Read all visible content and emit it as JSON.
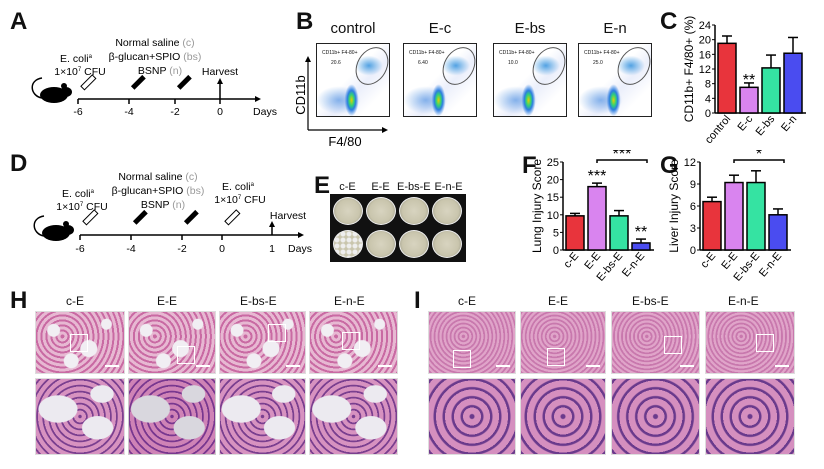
{
  "panels": {
    "A": "A",
    "B": "B",
    "C": "C",
    "D": "D",
    "E": "E",
    "F": "F",
    "G": "G",
    "H": "H",
    "I": "I"
  },
  "timeline_a": {
    "ecoli_line1": "E. coli",
    "ecoli_sup": "a",
    "ecoli_line2": "1×10",
    "ecoli_exp": "7",
    "ecoli_unit": " CFU",
    "treat1": "Normal saline ",
    "treat1_tag": "(c)",
    "treat2": "β-glucan+SPIO ",
    "treat2_tag": "(bs)",
    "treat3": "BSNP ",
    "treat3_tag": "(n)",
    "harvest": "Harvest",
    "ticks": [
      "-6",
      "-4",
      "-2",
      "0"
    ],
    "axis_label": "Days"
  },
  "timeline_d": {
    "ecoli_line1": "E. coli",
    "ecoli_sup": "a",
    "ecoli_line2": "1×10",
    "ecoli_exp": "7",
    "ecoli_unit": " CFU",
    "treat1": "Normal saline ",
    "treat1_tag": "(c)",
    "treat2": "β-glucan+SPIO ",
    "treat2_tag": "(bs)",
    "treat3": "BSNP ",
    "treat3_tag": "(n)",
    "harvest": "Harvest",
    "ticks": [
      "-6",
      "-4",
      "-2",
      "0",
      "1"
    ],
    "axis_label": "Days"
  },
  "flow": {
    "y_label": "CD11b",
    "x_label": "F4/80",
    "gate_label": "CD11b+ F4-80+",
    "plots": [
      {
        "title": "control",
        "value": "20.6"
      },
      {
        "title": "E-c",
        "value": "6.40"
      },
      {
        "title": "E-bs",
        "value": "10.0"
      },
      {
        "title": "E-n",
        "value": "25.0"
      }
    ]
  },
  "plates": {
    "labels": [
      "c-E",
      "E-E",
      "E-bs-E",
      "E-n-E"
    ]
  },
  "histology": {
    "H": [
      "c-E",
      "E-E",
      "E-bs-E",
      "E-n-E"
    ],
    "I": [
      "c-E",
      "E-E",
      "E-bs-E",
      "E-n-E"
    ]
  },
  "colors": [
    "#e8343c",
    "#d984ef",
    "#35e3a2",
    "#4a4cf0"
  ],
  "chart_data": [
    {
      "id": "C",
      "type": "bar",
      "ylabel": "CD11b+ F4/80+ (%)",
      "categories": [
        "control",
        "E-c",
        "E-bs",
        "E-n"
      ],
      "values": [
        19,
        7,
        12.3,
        16.3
      ],
      "errors": [
        2,
        1.2,
        3.5,
        4.3
      ],
      "ylim": [
        0,
        24
      ],
      "yticks": [
        "0",
        "4",
        "8",
        "12",
        "16",
        "20",
        "24"
      ],
      "annotations": [
        {
          "category": "E-c",
          "text": "**"
        }
      ]
    },
    {
      "id": "F",
      "type": "bar",
      "ylabel": "Lung Injury Score",
      "categories": [
        "c-E",
        "E-E",
        "E-bs-E",
        "E-n-E"
      ],
      "values": [
        9.7,
        18,
        9.7,
        2
      ],
      "errors": [
        0.7,
        1,
        1.5,
        1.1
      ],
      "ylim": [
        0,
        25
      ],
      "yticks": [
        "0",
        "5",
        "10",
        "15",
        "20",
        "25"
      ],
      "annotations": [
        {
          "category": "E-E",
          "text": "***"
        },
        {
          "category": "E-n-E",
          "text": "**"
        }
      ],
      "bracket": {
        "from": "E-E",
        "to": "E-n-E",
        "text": "***"
      }
    },
    {
      "id": "G",
      "type": "bar",
      "ylabel": "Liver Injury Score",
      "categories": [
        "c-E",
        "E-E",
        "E-bs-E",
        "E-n-E"
      ],
      "values": [
        6.6,
        9.2,
        9.2,
        4.8
      ],
      "errors": [
        0.6,
        1,
        1.6,
        0.8
      ],
      "ylim": [
        0,
        12
      ],
      "yticks": [
        "0",
        "3",
        "6",
        "9",
        "12"
      ],
      "annotations": [],
      "bracket": {
        "from": "E-E",
        "to": "E-n-E",
        "text": "*"
      }
    }
  ]
}
